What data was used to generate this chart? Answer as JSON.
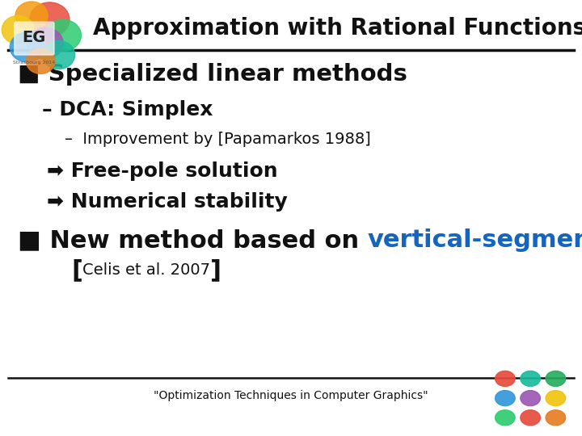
{
  "title": "Approximation with Rational Functions",
  "title_fontsize": 20,
  "title_color": "#111111",
  "bg_color": "#ffffff",
  "header_line_color": "#111111",
  "footer_line_color": "#111111",
  "footer_text": "\"Optimization Techniques in Computer Graphics\"",
  "footer_fontsize": 10,
  "bullet1_prefix": "■ ",
  "bullet1": "Specialized linear methods",
  "bullet1_fontsize": 21,
  "sub1": "– DCA: Simplex",
  "sub1_fontsize": 18,
  "sub2_dash": "–",
  "sub2_text": "  Improvement by [Papamarkos 1988]",
  "sub2_fontsize": 14,
  "arrow1": "➡ Free-pole solution",
  "arrow1_fontsize": 18,
  "arrow2": "➡ Numerical stability",
  "arrow2_fontsize": 18,
  "bullet2_prefix": "■ ",
  "bullet2_black": "New method based on ",
  "bullet2_blue": "vertical-segment",
  "bullet2_fontsize": 22,
  "bullet2_black_color": "#111111",
  "bullet2_blue_color": "#1565C0",
  "sub3_left": "[",
  "sub3_mid": "Celis et al. 2007",
  "sub3_right": "]",
  "sub3_bracket_fontsize": 22,
  "sub3_mid_fontsize": 14,
  "sub3_bracket_color": "#111111",
  "sub3_mid_color": "#111111",
  "dark_text": "#111111",
  "logo_colors_top": [
    "#e74c3c",
    "#e67e22",
    "#f1c40f",
    "#2ecc71",
    "#9b59b6",
    "#3498db",
    "#1abc9c",
    "#e74c3c",
    "#e67e22"
  ],
  "logo_colors_br": [
    "#2ecc71",
    "#e74c3c",
    "#e67e22",
    "#3498db",
    "#9b59b6",
    "#f1c40f",
    "#e74c3c",
    "#1abc9c",
    "#3498db"
  ]
}
